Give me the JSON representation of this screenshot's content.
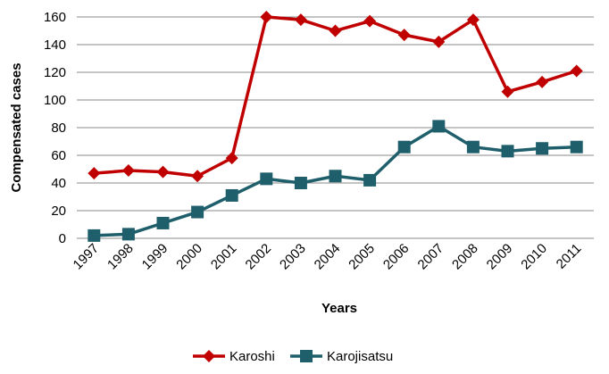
{
  "chart_data": {
    "type": "line",
    "xlabel": "Years",
    "ylabel": "Compensated cases",
    "ylim": [
      0,
      160
    ],
    "yticks": [
      0,
      20,
      40,
      60,
      80,
      100,
      120,
      140,
      160
    ],
    "grid": true,
    "legend_position": "bottom",
    "categories": [
      "1997",
      "1998",
      "1999",
      "2000",
      "2001",
      "2002",
      "2003",
      "2004",
      "2005",
      "2006",
      "2007",
      "2008",
      "2009",
      "2010",
      "2011"
    ],
    "series": [
      {
        "name": "Karoshi",
        "color": "#c00000",
        "marker": "diamond",
        "values": [
          47,
          49,
          48,
          45,
          58,
          160,
          158,
          150,
          157,
          147,
          142,
          158,
          106,
          113,
          121
        ]
      },
      {
        "name": "Karojisatsu",
        "color": "#1f5f6b",
        "marker": "square",
        "values": [
          2,
          3,
          11,
          19,
          31,
          43,
          40,
          45,
          42,
          66,
          81,
          66,
          63,
          65,
          66
        ]
      }
    ]
  }
}
